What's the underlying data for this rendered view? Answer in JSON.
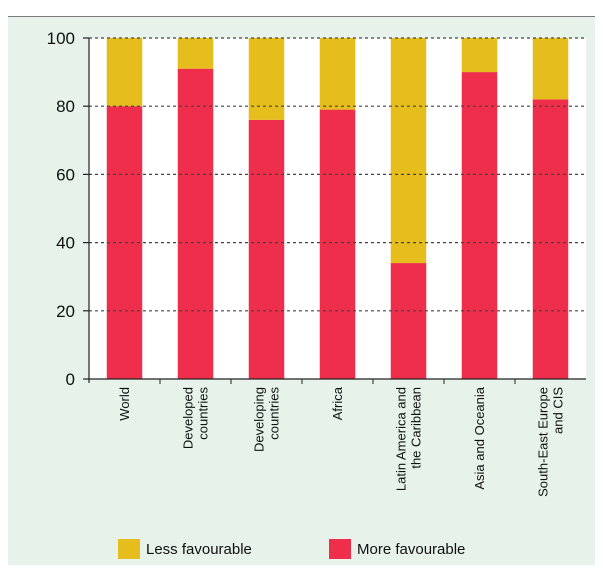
{
  "chart_data": {
    "type": "bar",
    "stacked": true,
    "title": "",
    "xlabel": "",
    "ylabel": "",
    "ylim": [
      0,
      100
    ],
    "yticks": [
      0,
      20,
      40,
      60,
      80,
      100
    ],
    "categories": [
      [
        "World"
      ],
      [
        "Developed",
        "countries"
      ],
      [
        "Developing",
        "countries"
      ],
      [
        "Africa"
      ],
      [
        "Latin America and",
        "the Caribbean"
      ],
      [
        "Asia and Oceania"
      ],
      [
        "South-East Europe",
        "and CIS"
      ]
    ],
    "series": [
      {
        "name": "More favourable",
        "color": "#ee2e4a",
        "values": [
          80,
          91,
          76,
          79,
          34,
          90,
          82
        ]
      },
      {
        "name": "Less favourable",
        "color": "#e5bd1c",
        "values": [
          20,
          9,
          24,
          21,
          66,
          10,
          18
        ]
      }
    ],
    "grid": "dashed horizontal",
    "legend_position": "bottom",
    "legend_order": [
      "Less favourable",
      "More favourable"
    ]
  }
}
